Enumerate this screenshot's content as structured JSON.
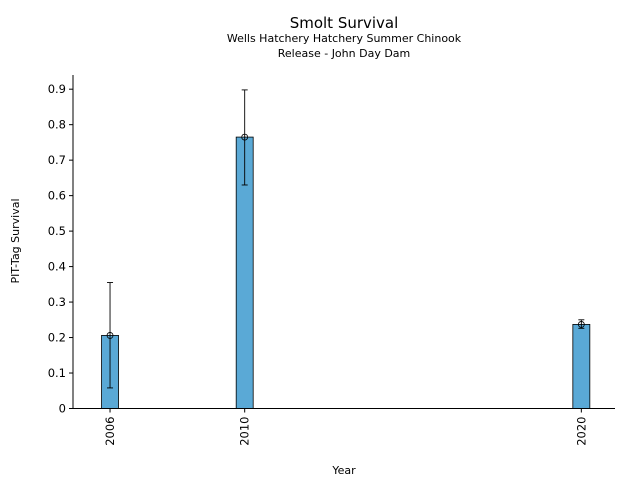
{
  "chart_data": {
    "type": "bar",
    "title": "Smolt Survival",
    "subtitle_lines": [
      "Wells Hatchery Hatchery Summer Chinook",
      "Release - John Day Dam"
    ],
    "xlabel": "Year",
    "ylabel": "PIT-Tag Survival",
    "x": [
      2006,
      2010,
      2020
    ],
    "categories": [
      "2006",
      "2010",
      "2020"
    ],
    "values": [
      0.206,
      0.765,
      0.237
    ],
    "error_low": [
      0.058,
      0.63,
      0.226
    ],
    "error_high": [
      0.355,
      0.898,
      0.25
    ],
    "ylim": [
      0,
      0.94
    ],
    "xlim": [
      2004.9,
      2021.0
    ],
    "yticks": [
      "0",
      "0.1",
      "0.2",
      "0.3",
      "0.4",
      "0.5",
      "0.6",
      "0.7",
      "0.8",
      "0.9"
    ],
    "bar_color": "#5aa9d6",
    "grid": false
  }
}
